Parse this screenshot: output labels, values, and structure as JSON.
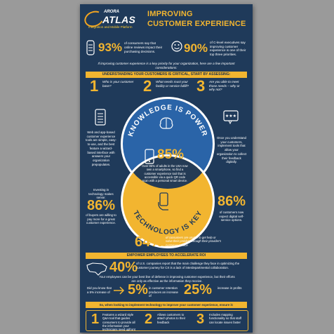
{
  "header": {
    "brand_small": "ARORA",
    "brand_big": "ATLAS",
    "brand_tagline": "Integration and Mobile Platform",
    "title_line1": "IMPROVING",
    "title_line2": "CUSTOMER EXPERIENCE"
  },
  "top_stats": [
    {
      "value": "93%",
      "text": "of consumers say that online reviews impact their purchasing decisions."
    },
    {
      "value": "90%",
      "text": "of C-level executives say improving customer experience is one of their top three priorities."
    }
  ],
  "intro_note": "If improving customer experience is a key priority for your organization, here are a few important considerations:",
  "assess_bar": "UNDERSTANDING YOUR CUSTOMERS IS CRITICAL, START BY ASSESSING:",
  "assess": [
    {
      "num": "1",
      "text": "Who is your customer base?"
    },
    {
      "num": "2",
      "text": "What needs must your facility or service fulfill?"
    },
    {
      "num": "3",
      "text": "Are you able to meet those needs – why or why not?"
    }
  ],
  "venn": {
    "top_label": "KNOWLEDGE IS POWER",
    "bottom_label": "TECHNOLOGY IS KEY",
    "center_value": "85%",
    "center_text": "Over 85% of adults in the USA now own a smartphone, so find a customer experience tool that is accessible via a quick QR code scan with a personal smart device."
  },
  "left_side": {
    "top_text": "Web and app-based customer experience tools are simple, easy-to-use, and the best feature a wizard-based interface with answers your organization prepopulates.",
    "bottom_intro": "Investing in technology makes sense:",
    "bottom_value": "86%",
    "bottom_text": "of buyers are willing to pay more for a great customer experience."
  },
  "right_side": {
    "top_text": "Once you understand your customers, implement tools that allow your organization to collect their feedback digitally.",
    "bottom_value": "86%",
    "bottom_text": "of customers now expect digital self-service options."
  },
  "bottom_center": {
    "value": "64%",
    "text": "of consumers are unable to get help or solve their problem through their provider's customer service"
  },
  "roi_bar": "EMPOWER EMPLOYEES TO ACCELERATE ROI",
  "roi": {
    "value": "40%",
    "text": "of U.S. companies report that the main challenge they face in optimizing the customer journey for CX is a lack of interdepartmental collaboration.",
    "note": "Your employees can be your best line of defense in improving customer experience, but their efforts are only as effective as the information they receive.",
    "small_left": "Did you know that a 5% increase of",
    "mid_value": "5%",
    "mid_text": "in customer retention produces an increase of",
    "right_value": "25%",
    "right_text": "increase in profits"
  },
  "implement_bar": "So, when looking to implement technology to improve your customer experience, ensure it:",
  "implement": [
    {
      "num": "1",
      "text": "Features a wizard style Q&A tool that guides consumers to provide all the information your technicians need upfront"
    },
    {
      "num": "2",
      "text": "Allows customers to attach photos to their feedback"
    },
    {
      "num": "3",
      "text": "Includes mapping functionality so that staff can locate issues faster"
    }
  ],
  "colors": {
    "navy": "#1f3a5a",
    "gold": "#f2b530",
    "blue": "#2a64a8"
  }
}
